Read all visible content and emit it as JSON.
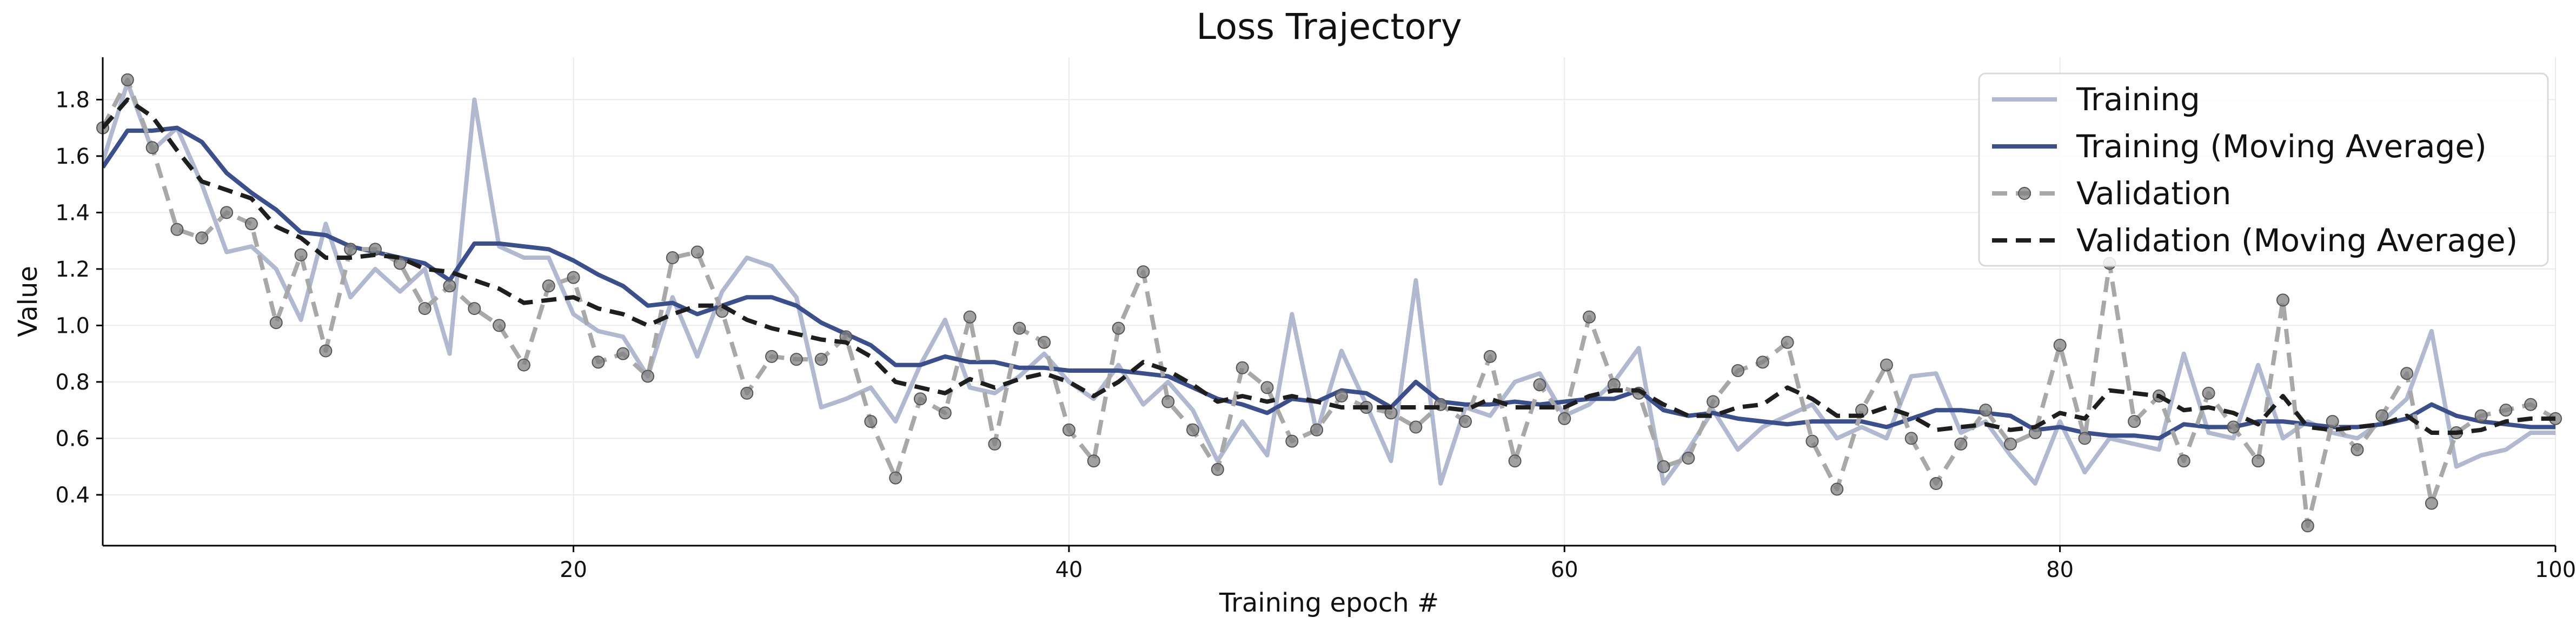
{
  "chart_data": {
    "type": "line",
    "title": "Loss Trajectory",
    "xlabel": "Training epoch #",
    "ylabel": "Value",
    "xlim": [
      1,
      100
    ],
    "ylim": [
      0.22,
      1.95
    ],
    "xticks": [
      20,
      40,
      60,
      80,
      100
    ],
    "yticks": [
      0.4,
      0.6,
      0.8,
      1.0,
      1.2,
      1.4,
      1.6,
      1.8
    ],
    "grid": true,
    "legend_position": "top-right",
    "colors": {
      "training": "#b0b9cf",
      "training_ma": "#3a4f8c",
      "validation": "#a8a8a8",
      "validation_marker": "#808080",
      "validation_ma": "#1e1e1e"
    },
    "series": [
      {
        "name": "Training",
        "x": [
          1,
          2,
          3,
          4,
          5,
          6,
          7,
          8,
          9,
          10,
          11,
          12,
          13,
          14,
          15,
          16,
          17,
          18,
          19,
          20,
          21,
          22,
          23,
          24,
          25,
          26,
          27,
          28,
          29,
          30,
          31,
          32,
          33,
          34,
          35,
          36,
          37,
          38,
          39,
          40,
          41,
          42,
          43,
          44,
          45,
          46,
          47,
          48,
          49,
          50,
          51,
          52,
          53,
          54,
          55,
          56,
          57,
          58,
          59,
          60,
          61,
          62,
          63,
          64,
          65,
          66,
          67,
          68,
          69,
          70,
          71,
          72,
          73,
          74,
          75,
          76,
          77,
          78,
          79,
          80,
          81,
          82,
          83,
          84,
          85,
          86,
          87,
          88,
          89,
          90,
          91,
          92,
          93,
          94,
          95,
          96,
          97,
          98,
          99,
          100
        ],
        "values": [
          1.58,
          1.86,
          1.62,
          1.7,
          1.5,
          1.26,
          1.28,
          1.2,
          1.02,
          1.36,
          1.1,
          1.2,
          1.12,
          1.2,
          0.9,
          1.8,
          1.28,
          1.24,
          1.24,
          1.04,
          0.98,
          0.96,
          0.82,
          1.1,
          0.89,
          1.12,
          1.24,
          1.21,
          1.1,
          0.71,
          0.74,
          0.78,
          0.66,
          0.86,
          1.02,
          0.78,
          0.76,
          0.82,
          0.9,
          0.8,
          0.74,
          0.86,
          0.72,
          0.8,
          0.7,
          0.52,
          0.66,
          0.54,
          1.04,
          0.62,
          0.91,
          0.72,
          0.52,
          1.16,
          0.44,
          0.71,
          0.68,
          0.8,
          0.83,
          0.68,
          0.72,
          0.8,
          0.92,
          0.44,
          0.56,
          0.7,
          0.56,
          0.64,
          0.68,
          0.72,
          0.6,
          0.64,
          0.6,
          0.82,
          0.83,
          0.62,
          0.66,
          0.54,
          0.44,
          0.66,
          0.48,
          0.6,
          0.58,
          0.56,
          0.9,
          0.62,
          0.6,
          0.86,
          0.6,
          0.66,
          0.62,
          0.6,
          0.66,
          0.74,
          0.98,
          0.5,
          0.54,
          0.56,
          0.62,
          0.62
        ]
      },
      {
        "name": "Training (Moving Average)",
        "x": [
          1,
          2,
          3,
          4,
          5,
          6,
          7,
          8,
          9,
          10,
          11,
          12,
          13,
          14,
          15,
          16,
          17,
          18,
          19,
          20,
          21,
          22,
          23,
          24,
          25,
          26,
          27,
          28,
          29,
          30,
          31,
          32,
          33,
          34,
          35,
          36,
          37,
          38,
          39,
          40,
          41,
          42,
          43,
          44,
          45,
          46,
          47,
          48,
          49,
          50,
          51,
          52,
          53,
          54,
          55,
          56,
          57,
          58,
          59,
          60,
          61,
          62,
          63,
          64,
          65,
          66,
          67,
          68,
          69,
          70,
          71,
          72,
          73,
          74,
          75,
          76,
          77,
          78,
          79,
          80,
          81,
          82,
          83,
          84,
          85,
          86,
          87,
          88,
          89,
          90,
          91,
          92,
          93,
          94,
          95,
          96,
          97,
          98,
          99,
          100
        ],
        "values": [
          1.56,
          1.69,
          1.69,
          1.7,
          1.65,
          1.54,
          1.47,
          1.41,
          1.33,
          1.32,
          1.28,
          1.26,
          1.24,
          1.22,
          1.16,
          1.29,
          1.29,
          1.28,
          1.27,
          1.23,
          1.18,
          1.14,
          1.07,
          1.08,
          1.04,
          1.07,
          1.1,
          1.1,
          1.07,
          1.01,
          0.97,
          0.93,
          0.86,
          0.86,
          0.89,
          0.87,
          0.87,
          0.85,
          0.85,
          0.84,
          0.84,
          0.84,
          0.83,
          0.82,
          0.78,
          0.74,
          0.72,
          0.69,
          0.74,
          0.73,
          0.77,
          0.76,
          0.71,
          0.8,
          0.73,
          0.72,
          0.72,
          0.73,
          0.72,
          0.73,
          0.74,
          0.74,
          0.77,
          0.7,
          0.68,
          0.69,
          0.67,
          0.66,
          0.65,
          0.66,
          0.66,
          0.66,
          0.64,
          0.67,
          0.7,
          0.7,
          0.69,
          0.68,
          0.63,
          0.64,
          0.62,
          0.61,
          0.61,
          0.6,
          0.65,
          0.64,
          0.64,
          0.66,
          0.66,
          0.65,
          0.64,
          0.64,
          0.65,
          0.67,
          0.72,
          0.68,
          0.66,
          0.65,
          0.64,
          0.64
        ]
      },
      {
        "name": "Validation",
        "x": [
          1,
          2,
          3,
          4,
          5,
          6,
          7,
          8,
          9,
          10,
          11,
          12,
          13,
          14,
          15,
          16,
          17,
          18,
          19,
          20,
          21,
          22,
          23,
          24,
          25,
          26,
          27,
          28,
          29,
          30,
          31,
          32,
          33,
          34,
          35,
          36,
          37,
          38,
          39,
          40,
          41,
          42,
          43,
          44,
          45,
          46,
          47,
          48,
          49,
          50,
          51,
          52,
          53,
          54,
          55,
          56,
          57,
          58,
          59,
          60,
          61,
          62,
          63,
          64,
          65,
          66,
          67,
          68,
          69,
          70,
          71,
          72,
          73,
          74,
          75,
          76,
          77,
          78,
          79,
          80,
          81,
          82,
          83,
          84,
          85,
          86,
          87,
          88,
          89,
          90,
          91,
          92,
          93,
          94,
          95,
          96,
          97,
          98,
          99,
          100
        ],
        "values": [
          1.7,
          1.87,
          1.63,
          1.34,
          1.31,
          1.4,
          1.36,
          1.01,
          1.25,
          0.91,
          1.27,
          1.27,
          1.22,
          1.06,
          1.14,
          1.06,
          1.0,
          0.86,
          1.14,
          1.17,
          0.87,
          0.9,
          0.82,
          1.24,
          1.26,
          1.05,
          0.76,
          0.89,
          0.88,
          0.88,
          0.96,
          0.66,
          0.46,
          0.74,
          0.69,
          1.03,
          0.58,
          0.99,
          0.94,
          0.63,
          0.52,
          0.99,
          1.19,
          0.73,
          0.63,
          0.49,
          0.85,
          0.78,
          0.59,
          0.63,
          0.75,
          0.71,
          0.69,
          0.64,
          0.72,
          0.66,
          0.89,
          0.52,
          0.79,
          0.67,
          1.03,
          0.79,
          0.76,
          0.5,
          0.53,
          0.73,
          0.84,
          0.87,
          0.94,
          0.59,
          0.42,
          0.7,
          0.86,
          0.6,
          0.44,
          0.58,
          0.7,
          0.58,
          0.62,
          0.93,
          0.6,
          1.22,
          0.66,
          0.75,
          0.52,
          0.76,
          0.64,
          0.52,
          1.09,
          0.29,
          0.66,
          0.56,
          0.68,
          0.83,
          0.37,
          0.62,
          0.68,
          0.7,
          0.72,
          0.67
        ]
      },
      {
        "name": "Validation (Moving Average)",
        "x": [
          1,
          2,
          3,
          4,
          5,
          6,
          7,
          8,
          9,
          10,
          11,
          12,
          13,
          14,
          15,
          16,
          17,
          18,
          19,
          20,
          21,
          22,
          23,
          24,
          25,
          26,
          27,
          28,
          29,
          30,
          31,
          32,
          33,
          34,
          35,
          36,
          37,
          38,
          39,
          40,
          41,
          42,
          43,
          44,
          45,
          46,
          47,
          48,
          49,
          50,
          51,
          52,
          53,
          54,
          55,
          56,
          57,
          58,
          59,
          60,
          61,
          62,
          63,
          64,
          65,
          66,
          67,
          68,
          69,
          70,
          71,
          72,
          73,
          74,
          75,
          76,
          77,
          78,
          79,
          80,
          81,
          82,
          83,
          84,
          85,
          86,
          87,
          88,
          89,
          90,
          91,
          92,
          93,
          94,
          95,
          96,
          97,
          98,
          99,
          100
        ],
        "values": [
          1.7,
          1.8,
          1.74,
          1.62,
          1.51,
          1.48,
          1.45,
          1.35,
          1.31,
          1.24,
          1.24,
          1.25,
          1.24,
          1.2,
          1.19,
          1.16,
          1.13,
          1.08,
          1.09,
          1.1,
          1.06,
          1.04,
          1.0,
          1.04,
          1.07,
          1.07,
          1.02,
          0.99,
          0.97,
          0.95,
          0.94,
          0.89,
          0.8,
          0.78,
          0.76,
          0.81,
          0.78,
          0.81,
          0.83,
          0.8,
          0.75,
          0.8,
          0.87,
          0.84,
          0.79,
          0.73,
          0.75,
          0.73,
          0.75,
          0.73,
          0.71,
          0.71,
          0.71,
          0.71,
          0.71,
          0.7,
          0.74,
          0.71,
          0.71,
          0.71,
          0.75,
          0.77,
          0.77,
          0.72,
          0.68,
          0.68,
          0.71,
          0.72,
          0.78,
          0.74,
          0.68,
          0.68,
          0.71,
          0.68,
          0.63,
          0.64,
          0.65,
          0.63,
          0.64,
          0.69,
          0.67,
          0.77,
          0.76,
          0.75,
          0.7,
          0.71,
          0.69,
          0.65,
          0.75,
          0.64,
          0.63,
          0.64,
          0.65,
          0.68,
          0.62,
          0.62,
          0.63,
          0.66,
          0.67,
          0.67
        ]
      }
    ]
  }
}
